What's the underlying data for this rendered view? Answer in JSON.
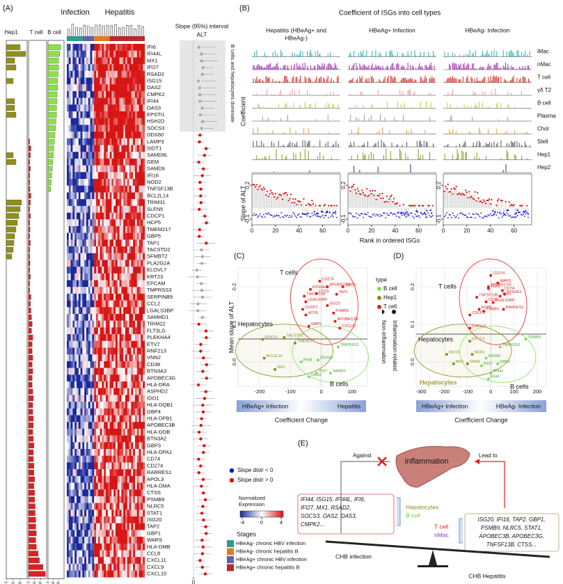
{
  "panel_a": {
    "label": "(A)",
    "column_headers": [
      "Hep1",
      "T cell",
      "B cell"
    ],
    "group_headers": [
      "Infection",
      "Hepatitis"
    ],
    "slope_title": "Slope (95%) interval",
    "slope_subtitle": "ALT",
    "shaded_note": "B cells and hepatocytes dominate",
    "genes": [
      "IFI6",
      "IFI44L",
      "MX1",
      "IFI27",
      "RSAD2",
      "ISG15",
      "OAS2",
      "CMPK2",
      "IFI44",
      "OAS3",
      "EPSTI1",
      "HSH2D",
      "SOCS3",
      "DDX60",
      "LAMP3",
      "SIDT1",
      "SAMD9L",
      "GEM",
      "SAMD9",
      "IFI16",
      "NOD2",
      "TNFSF13B",
      "BCL2L14",
      "TRIM31",
      "SLFN5",
      "CDCP1",
      "HCP5",
      "TMEM217",
      "GBP5",
      "TAP1",
      "TACSTD2",
      "SFMBT2",
      "PLA2G2A",
      "ELOVL7",
      "KRT23",
      "EPCAM",
      "TMPRSS3",
      "SERPINB9",
      "CCL2",
      "LGALS3BP",
      "SAMHD1",
      "TRIM22",
      "FLT3LG",
      "PLEKHA4",
      "ETV7",
      "RNF213",
      "VNN2",
      "CD38",
      "BTN3A3",
      "APOBEC3G",
      "HLA-DRA",
      "ASPHD2",
      "IDO1",
      "HLA-DQB1",
      "GBP4",
      "HLA-DPB1",
      "APOBEC3B",
      "HLA-DOB",
      "BTN3A2",
      "GBP3",
      "HLA-DPA1",
      "CD74",
      "CD274",
      "RARRES1",
      "APOL3",
      "HLA-DMA",
      "CTSS",
      "PSMB9",
      "NLRC5",
      "STAT1",
      "ISG20",
      "TAP2",
      "GBP1",
      "WARS",
      "HLA-DMB",
      "CCL8",
      "CXCL11",
      "CXCL9",
      "CXCL10"
    ],
    "bar_series": [
      {
        "name": "Hep1",
        "color": "#8f8f1c",
        "values": [
          100,
          140,
          60,
          70,
          0,
          50,
          0,
          0,
          60,
          60,
          70,
          0,
          0,
          0,
          0,
          0,
          50,
          70,
          0,
          0,
          0,
          0,
          0,
          110,
          100,
          90,
          80,
          70,
          60,
          55,
          50,
          40,
          0,
          0,
          0,
          0,
          0,
          0,
          0,
          0,
          0,
          0,
          0,
          0,
          0,
          0,
          0,
          0,
          0,
          0,
          0,
          0,
          0,
          0,
          0,
          0,
          0,
          0,
          0,
          0,
          0,
          0,
          0,
          0,
          0,
          0,
          0,
          0,
          0,
          0,
          0,
          0,
          0,
          0,
          0,
          0,
          0,
          0,
          0
        ]
      },
      {
        "name": "T cell",
        "color": "#e02020",
        "values": [
          0,
          0,
          0,
          0,
          0,
          0,
          0,
          0,
          0,
          0,
          0,
          0,
          0,
          0,
          10,
          20,
          15,
          10,
          15,
          10,
          10,
          12,
          20,
          15,
          10,
          15,
          10,
          12,
          10,
          15,
          10,
          10,
          12,
          10,
          15,
          10,
          10,
          20,
          15,
          20,
          25,
          30,
          25,
          35,
          30,
          30,
          35,
          30,
          35,
          30,
          30,
          35,
          40,
          35,
          35,
          40,
          40,
          35,
          40,
          45,
          40,
          40,
          45,
          45,
          50,
          45,
          50,
          50,
          55,
          55,
          60,
          60,
          65,
          60,
          65,
          80,
          90,
          120,
          140
        ]
      },
      {
        "name": "B cell",
        "color": "#8ee04a",
        "values": [
          120,
          110,
          100,
          100,
          95,
          90,
          90,
          85,
          85,
          80,
          80,
          75,
          70,
          65,
          60,
          55,
          50,
          45,
          40,
          35,
          30,
          25,
          0,
          0,
          0,
          0,
          0,
          0,
          0,
          0,
          0,
          0,
          0,
          0,
          0,
          0,
          0,
          0,
          0,
          0,
          0,
          0,
          0,
          0,
          0,
          0,
          0,
          0,
          0,
          0,
          0,
          0,
          0,
          0,
          0,
          0,
          0,
          0,
          0,
          0,
          0,
          0,
          0,
          0,
          0,
          0,
          0,
          0,
          0,
          0,
          0,
          0,
          0,
          0,
          0,
          0,
          0,
          0,
          0
        ]
      }
    ],
    "bar_xlim": [
      0,
      150
    ],
    "bar_xticks": [
      0,
      50,
      100
    ],
    "slope_legend": [
      {
        "name": "Slope distr < 0",
        "color": "#1010d0"
      },
      {
        "name": "Slope distr > 0",
        "color": "#e01010"
      }
    ],
    "slope_xticks": [
      0
    ],
    "expression_legend": {
      "title": [
        "Normalized",
        "Expression"
      ],
      "ticks": [
        -4,
        0,
        4
      ]
    },
    "stages_title": "Stages",
    "stages": [
      {
        "name": "HBeAg- chronic HBV infection",
        "color": "#2a9d8f"
      },
      {
        "name": "HBeAg- chronic hepatitis B",
        "color": "#e07b24"
      },
      {
        "name": "HBeAg+ chronic HBV infection",
        "color": "#5b62b0"
      },
      {
        "name": "HBeAg+ chronic hepatitis B",
        "color": "#b22a2a"
      }
    ]
  },
  "panel_b": {
    "label": "(B)",
    "title": "Coefficient of ISGs into cell types",
    "columns": [
      [
        "Hepatitis (HBeAg+ and",
        "HBeAg-)"
      ],
      [
        "HBeAg+ Infection"
      ],
      [
        "HBeAg- Infection"
      ]
    ],
    "rows": [
      {
        "name": "iMac",
        "color": "#2ab0b0"
      },
      {
        "name": "nMac",
        "color": "#9a2aa8"
      },
      {
        "name": "T cell",
        "color": "#d82020"
      },
      {
        "name": "γδ T2",
        "color": "#e898a8"
      },
      {
        "name": "B cell",
        "color": "#a8d848"
      },
      {
        "name": "Plasma",
        "color": "#999999"
      },
      {
        "name": "Chol",
        "color": "#e0a030"
      },
      {
        "name": "Stell",
        "color": "#505050"
      },
      {
        "name": "Hep1",
        "color": "#909020"
      },
      {
        "name": "Hep2",
        "color": "#2030a0"
      }
    ],
    "ylabel": "Coefficient",
    "slope_ylabel": "Slope of ALT",
    "slope_ylim": [
      -0.15,
      0.3
    ],
    "slope_yticks": [
      -0.1,
      0.2
    ],
    "xlabel": "Rank in ordered ISGs",
    "xlim": [
      0,
      75
    ],
    "xticks": [
      0,
      20,
      40,
      60
    ]
  },
  "scatter_legend": {
    "title": "type",
    "series": [
      {
        "name": "B cell",
        "color": "#7ee05a"
      },
      {
        "name": "Hep1",
        "color": "#8a8a1a"
      },
      {
        "name": "T cell",
        "color": "#e02020"
      }
    ],
    "shapes": [
      "Non-inflammation",
      "Inflammation-related"
    ]
  },
  "panel_c": {
    "label": "(C)",
    "ylabel": "Mean slope of ALT",
    "xlim": [
      -270,
      150
    ],
    "xticks": [
      -200,
      -100,
      0,
      100
    ],
    "ylim": [
      -0.065,
      0.25
    ],
    "yticks": [
      {
        "value": 0,
        "label": "0.0"
      },
      0.1,
      0.2
    ],
    "group_labels": [
      "T cells",
      "Hepatocytes",
      "B cells"
    ],
    "gradient": [
      "HBeAg+ Infection",
      "Hepatitis"
    ],
    "xlabel": "Coefficient Change",
    "groups": [
      {
        "labels": [
          "DDX60",
          "OAS2",
          "IFI44",
          "SAMD9",
          "TMPRSS3",
          "IFI27"
        ],
        "x": [
          -10,
          -40,
          -65,
          30,
          55,
          -15
        ],
        "y": [
          0.005,
          -0.04,
          0,
          -0.03,
          0.04,
          -0.03
        ]
      },
      {
        "labels": [
          "EPSTI1",
          "TACSTD2",
          "TMEM217",
          "BCL2L14",
          "MX1"
        ],
        "x": [
          -190,
          -120,
          -85,
          -185,
          -150
        ],
        "y": [
          0.06,
          0.065,
          0.05,
          0.01,
          -0.02
        ]
      },
      {
        "labels": [
          "CD274",
          "APOBEC3G",
          "WARS",
          "BTN3A3",
          "CTSS",
          "TAP1",
          "TNFSF13B",
          "LGALS3BP",
          "CDCP1",
          "HCP5",
          "PSMB9",
          "APOBEC3B",
          "CXCL11",
          "GBP5",
          "ISG20"
        ],
        "x": [
          -5,
          20,
          70,
          -35,
          -15,
          50,
          -55,
          -50,
          -60,
          -50,
          40,
          45,
          60,
          -40,
          20
        ],
        "y": [
          0.215,
          0.2,
          0.2,
          0.193,
          0.182,
          0.18,
          0.175,
          0.16,
          0.14,
          0.125,
          0.13,
          0.108,
          0.09,
          0.095,
          0.15
        ]
      }
    ]
  },
  "panel_d": {
    "label": "(D)",
    "xlim": [
      -321,
      239
    ],
    "xticks": [
      -300,
      -200,
      -100,
      0,
      100,
      200
    ],
    "ylim": [
      -0.065,
      0.25
    ],
    "yticks": [
      {
        "value": 0,
        "label": "0.0"
      },
      0.1,
      0.2
    ],
    "group_labels": [
      "T cells",
      "Hepatocytes",
      "B cells",
      "Hepatocytes"
    ],
    "gradient": [
      "HBeAg+ Infection",
      "HBeAg- Infection"
    ],
    "xlabel": "Coefficient Change",
    "groups": [
      {
        "labels": [
          "TMPRSS3",
          "TRIM31",
          "DDX60",
          "IFI44L",
          "IFI44",
          "IFI27",
          "OAS2"
        ],
        "x": [
          40,
          150,
          -20,
          0,
          -10,
          -40,
          30
        ],
        "y": [
          0.04,
          0.06,
          0.01,
          -0.03,
          -0.045,
          -0.01,
          -0.005
        ]
      },
      {
        "labels": [
          "EPSTI1",
          "ISG15",
          "OAS3",
          "MX1",
          "NOD2"
        ],
        "x": [
          -90,
          -190,
          -100,
          -160,
          -80
        ],
        "y": [
          0.055,
          0.02,
          -0.005,
          -0.005,
          0.02
        ]
      },
      {
        "labels": [
          "CD274",
          "APOBEC3G",
          "WARS",
          "CD74",
          "TAP1",
          "BTN3A3",
          "TNFSF13B",
          "IFI16",
          "CD38",
          "LGALS3BP",
          "HCP5",
          "PSMB9",
          "RARRES1",
          "CDCP1",
          "CXCL11"
        ],
        "x": [
          0,
          -10,
          30,
          50,
          -10,
          60,
          -60,
          40,
          -20,
          10,
          -50,
          -30,
          55,
          -90,
          -90
        ],
        "y": [
          0.23,
          0.2,
          0.21,
          0.19,
          0.195,
          0.18,
          0.172,
          0.175,
          0.16,
          0.158,
          0.14,
          0.135,
          0.14,
          0.125,
          0.09
        ]
      }
    ]
  },
  "panel_e": {
    "label": "(E)",
    "center": "Inflammation",
    "against": "Against",
    "lead_to": "Lead to",
    "left_genes": [
      "IFI44, ISG15, IFI44L, IFI6,",
      "IFI27, MX1, RSAD2,",
      "SOCS3, OAS2, OAS3,",
      "CMPK2..."
    ],
    "left_cells": [
      {
        "name": "Hepatocytes",
        "color": "#8a8a1a"
      },
      {
        "name": "B cell",
        "color": "#6cc83a"
      }
    ],
    "right_cells": [
      {
        "name": "T cell",
        "color": "#e02020"
      },
      {
        "name": "nMac",
        "color": "#8a3ab0"
      }
    ],
    "right_genes": [
      "ISG20, IFI16, TAP2, GBP1,",
      "PSMB9, NLRC5, STAT1,",
      "APOBEC3B, APOBEC3G,",
      "TNFSF13B, CTSS..."
    ],
    "left_base": "CHB infection",
    "right_base": "CHB Hepatitis"
  }
}
